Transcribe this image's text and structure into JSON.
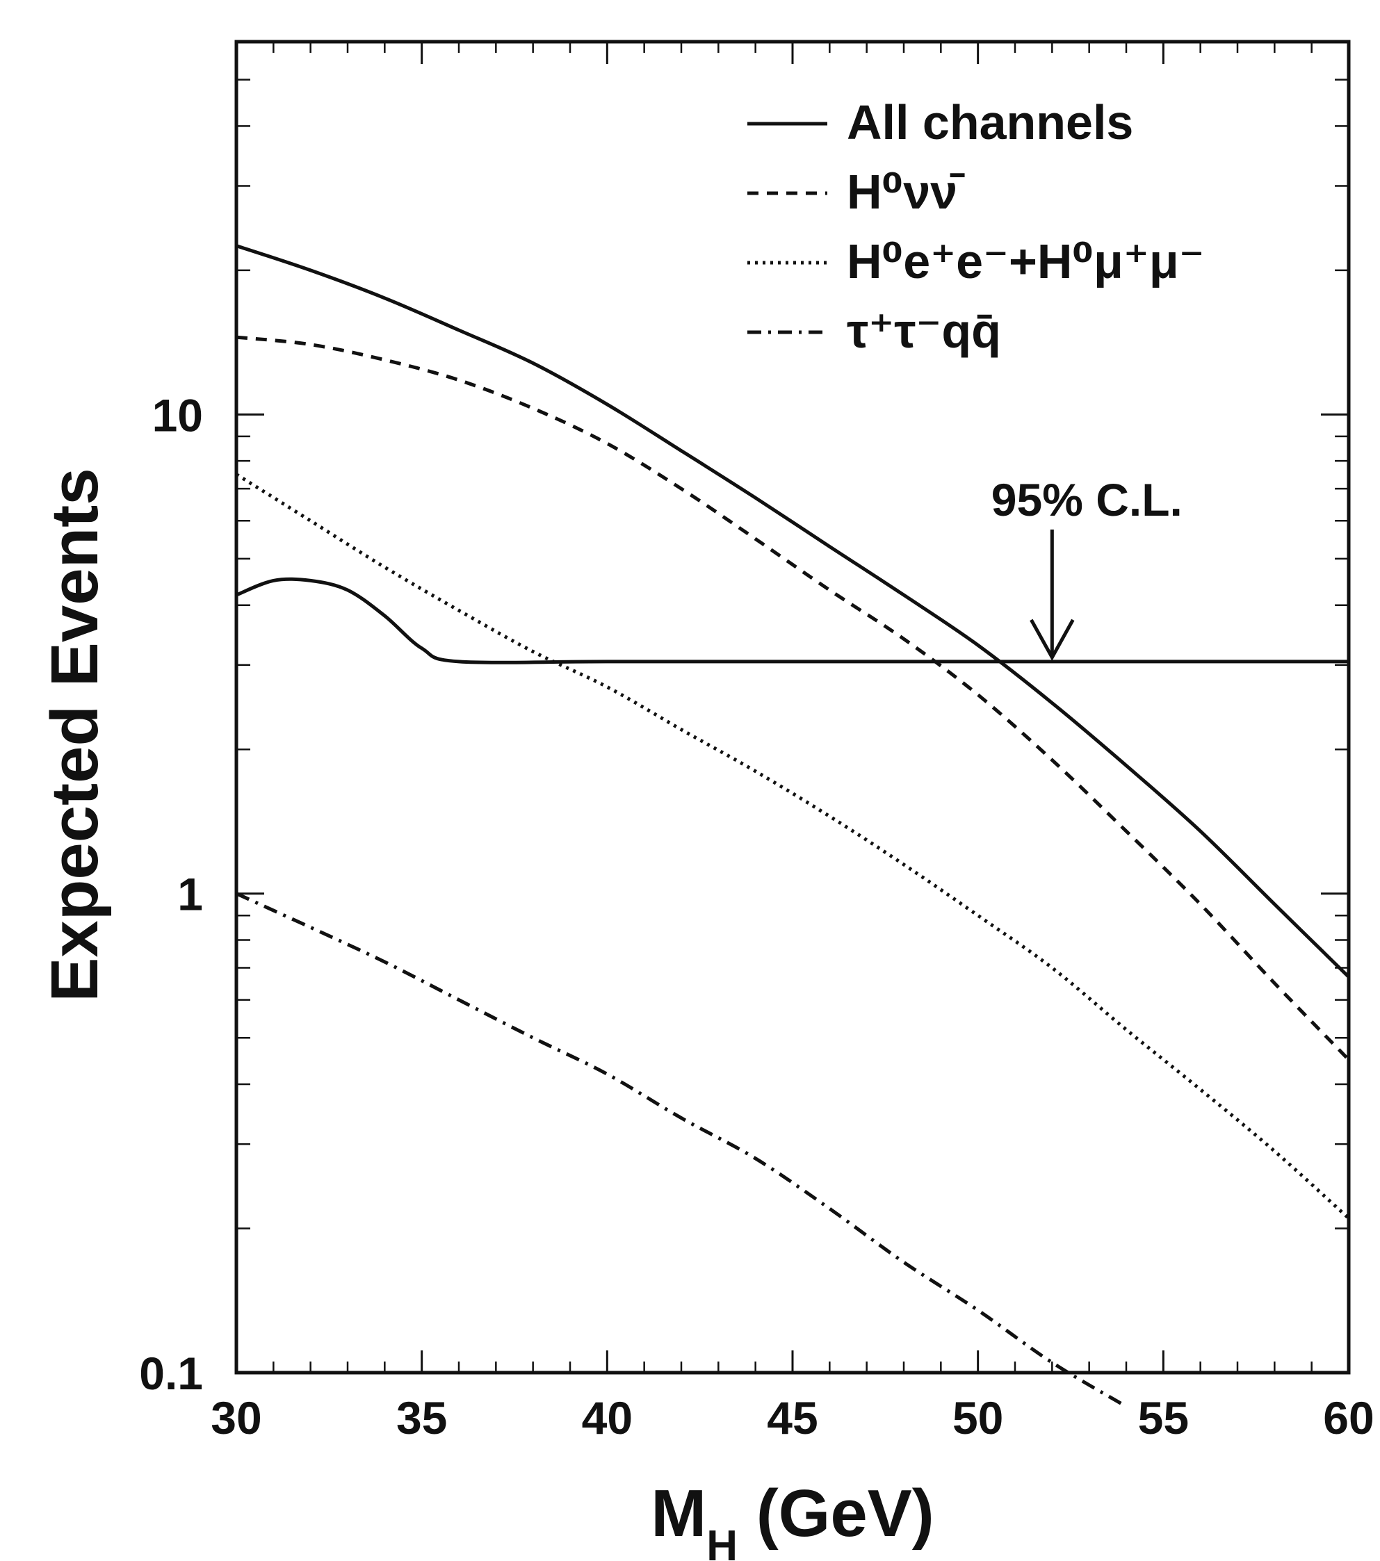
{
  "chart_data": {
    "type": "line",
    "title": "",
    "xlabel_main": "M",
    "xlabel_sub": "H",
    "xlabel_rest": " (GeV)",
    "ylabel": "Expected Events",
    "xlim": [
      30,
      60
    ],
    "ylim": [
      0.1,
      60
    ],
    "yscale": "log",
    "grid": false,
    "legend_position": "top-right",
    "x_ticks": [
      "30",
      "35",
      "40",
      "45",
      "50",
      "55",
      "60"
    ],
    "y_ticks": [
      "0.1",
      "1",
      "10"
    ],
    "series": [
      {
        "name": "All channels",
        "style": "solid",
        "x": [
          30,
          32,
          34,
          36,
          38,
          40,
          42,
          44,
          46,
          48,
          50,
          52,
          54,
          56,
          58,
          60
        ],
        "y": [
          22.5,
          20,
          17.5,
          15,
          12.8,
          10.5,
          8.4,
          6.7,
          5.3,
          4.2,
          3.3,
          2.5,
          1.85,
          1.35,
          0.95,
          0.67
        ]
      },
      {
        "name": "H⁰νν̄",
        "style": "dashed",
        "x": [
          30,
          32,
          34,
          36,
          38,
          40,
          42,
          44,
          46,
          48,
          50,
          52,
          54,
          56,
          58,
          60
        ],
        "y": [
          14.5,
          14,
          13,
          11.8,
          10.3,
          8.7,
          7,
          5.5,
          4.3,
          3.4,
          2.6,
          1.9,
          1.35,
          0.95,
          0.65,
          0.45
        ]
      },
      {
        "name": "H⁰e⁺e⁻+H⁰μ⁺μ⁻",
        "style": "dotted",
        "x": [
          30,
          32,
          34,
          36,
          38,
          40,
          42,
          44,
          46,
          48,
          50,
          52,
          54,
          56,
          58,
          60
        ],
        "y": [
          7.5,
          6,
          4.8,
          3.9,
          3.2,
          2.7,
          2.2,
          1.8,
          1.45,
          1.15,
          0.9,
          0.7,
          0.52,
          0.39,
          0.29,
          0.21
        ]
      },
      {
        "name": "τ⁺τ⁻qq̄",
        "style": "dashdot",
        "x": [
          30,
          32,
          34,
          36,
          38,
          40,
          42,
          44,
          46,
          48,
          50,
          52,
          54
        ],
        "y": [
          1.0,
          0.85,
          0.72,
          0.6,
          0.5,
          0.42,
          0.34,
          0.28,
          0.22,
          0.17,
          0.135,
          0.105,
          0.085
        ]
      },
      {
        "name": "95% C.L. limit",
        "style": "solid",
        "x": [
          30,
          31,
          32,
          33,
          34,
          35,
          36,
          40,
          45,
          50,
          55,
          60
        ],
        "y": [
          4.2,
          4.5,
          4.5,
          4.3,
          3.8,
          3.25,
          3.05,
          3.05,
          3.05,
          3.05,
          3.05,
          3.05
        ]
      }
    ],
    "legend": [
      {
        "label": "All channels",
        "style": "solid"
      },
      {
        "label_html": "H<tspan baseline-shift=\"super\" font-size=\"46\">0</tspan>νν̄",
        "label": "H⁰νν̄",
        "style": "dashed"
      },
      {
        "label": "H⁰e⁺e⁻+H⁰μ⁺μ⁻",
        "style": "dotted"
      },
      {
        "label": "τ⁺τ⁻qq̄",
        "style": "dashdot"
      }
    ],
    "annotation": {
      "text": "95% C.L.",
      "x": 52,
      "y": 3.05
    }
  }
}
